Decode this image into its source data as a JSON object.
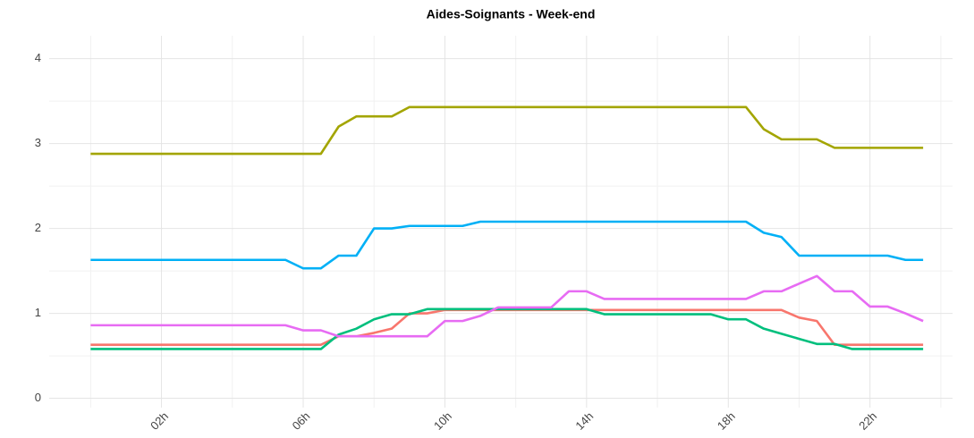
{
  "chart_data": {
    "type": "line",
    "title": "Aides-Soignants - Week-end",
    "x": [
      0,
      0.5,
      1,
      1.5,
      2,
      2.5,
      3,
      3.5,
      4,
      4.5,
      5,
      5.5,
      6,
      6.5,
      7,
      7.5,
      8,
      8.5,
      9,
      9.5,
      10,
      10.5,
      11,
      11.5,
      12,
      12.5,
      13,
      13.5,
      14,
      14.5,
      15,
      15.5,
      16,
      16.5,
      17,
      17.5,
      18,
      18.5,
      19,
      19.5,
      20,
      20.5,
      21,
      21.5,
      22,
      22.5,
      23,
      23.5
    ],
    "series": [
      {
        "color": "#f8766d",
        "values": [
          0.63,
          0.63,
          0.63,
          0.63,
          0.63,
          0.63,
          0.63,
          0.63,
          0.63,
          0.63,
          0.63,
          0.63,
          0.63,
          0.63,
          0.73,
          0.73,
          0.77,
          0.82,
          1.0,
          1.0,
          1.04,
          1.04,
          1.04,
          1.04,
          1.04,
          1.04,
          1.04,
          1.04,
          1.04,
          1.04,
          1.04,
          1.04,
          1.04,
          1.04,
          1.04,
          1.04,
          1.04,
          1.04,
          1.04,
          1.04,
          0.95,
          0.91,
          0.63,
          0.63,
          0.63,
          0.63,
          0.63,
          0.63
        ]
      },
      {
        "color": "#a3a500",
        "values": [
          2.88,
          2.88,
          2.88,
          2.88,
          2.88,
          2.88,
          2.88,
          2.88,
          2.88,
          2.88,
          2.88,
          2.88,
          2.88,
          2.88,
          3.2,
          3.32,
          3.32,
          3.32,
          3.43,
          3.43,
          3.43,
          3.43,
          3.43,
          3.43,
          3.43,
          3.43,
          3.43,
          3.43,
          3.43,
          3.43,
          3.43,
          3.43,
          3.43,
          3.43,
          3.43,
          3.43,
          3.43,
          3.43,
          3.17,
          3.05,
          3.05,
          3.05,
          2.95,
          2.95,
          2.95,
          2.95,
          2.95,
          2.95
        ]
      },
      {
        "color": "#00bf7d",
        "values": [
          0.58,
          0.58,
          0.58,
          0.58,
          0.58,
          0.58,
          0.58,
          0.58,
          0.58,
          0.58,
          0.58,
          0.58,
          0.58,
          0.58,
          0.75,
          0.82,
          0.93,
          0.99,
          0.99,
          1.05,
          1.05,
          1.05,
          1.05,
          1.05,
          1.05,
          1.05,
          1.05,
          1.05,
          1.05,
          0.99,
          0.99,
          0.99,
          0.99,
          0.99,
          0.99,
          0.99,
          0.93,
          0.93,
          0.82,
          0.76,
          0.7,
          0.64,
          0.64,
          0.58,
          0.58,
          0.58,
          0.58,
          0.58
        ]
      },
      {
        "color": "#00b0f6",
        "values": [
          1.63,
          1.63,
          1.63,
          1.63,
          1.63,
          1.63,
          1.63,
          1.63,
          1.63,
          1.63,
          1.63,
          1.63,
          1.53,
          1.53,
          1.68,
          1.68,
          2.0,
          2.0,
          2.03,
          2.03,
          2.03,
          2.03,
          2.08,
          2.08,
          2.08,
          2.08,
          2.08,
          2.08,
          2.08,
          2.08,
          2.08,
          2.08,
          2.08,
          2.08,
          2.08,
          2.08,
          2.08,
          2.08,
          1.95,
          1.9,
          1.68,
          1.68,
          1.68,
          1.68,
          1.68,
          1.68,
          1.63,
          1.63
        ]
      },
      {
        "color": "#e76bf3",
        "values": [
          0.86,
          0.86,
          0.86,
          0.86,
          0.86,
          0.86,
          0.86,
          0.86,
          0.86,
          0.86,
          0.86,
          0.86,
          0.8,
          0.8,
          0.73,
          0.73,
          0.73,
          0.73,
          0.73,
          0.73,
          0.91,
          0.91,
          0.97,
          1.07,
          1.07,
          1.07,
          1.07,
          1.26,
          1.26,
          1.17,
          1.17,
          1.17,
          1.17,
          1.17,
          1.17,
          1.17,
          1.17,
          1.17,
          1.26,
          1.26,
          1.35,
          1.44,
          1.26,
          1.26,
          1.08,
          1.08,
          1.0,
          0.91
        ]
      }
    ],
    "xlim": [
      -1.17,
      24.33
    ],
    "xticks": [
      {
        "value": 2,
        "label": "02h"
      },
      {
        "value": 6,
        "label": "06h"
      },
      {
        "value": 10,
        "label": "10h"
      },
      {
        "value": 14,
        "label": "14h"
      },
      {
        "value": 18,
        "label": "18h"
      },
      {
        "value": 22,
        "label": "22h"
      }
    ],
    "ylim": [
      -0.11,
      4.27
    ],
    "yticks": [
      0,
      1,
      2,
      3,
      4
    ],
    "grid": true,
    "minor_grid": true
  }
}
